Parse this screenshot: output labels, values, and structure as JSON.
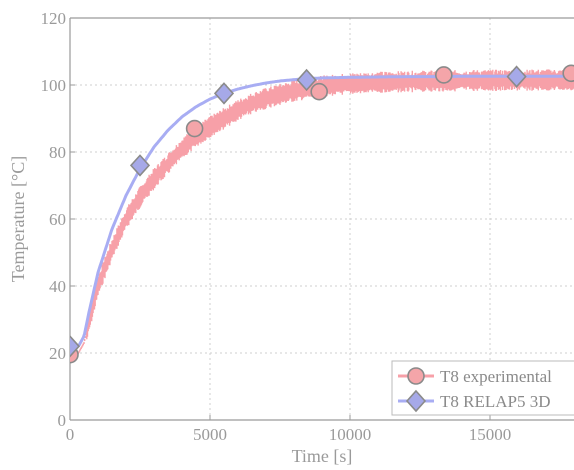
{
  "chart_data": {
    "type": "line",
    "title": "",
    "xlabel": "Time [s]",
    "ylabel": "Temperature [°C]",
    "xlim": [
      0,
      18000
    ],
    "ylim": [
      0,
      120
    ],
    "xticks": [
      0,
      5000,
      10000,
      15000
    ],
    "xtick_labels": [
      "0",
      "5000",
      "10000",
      "15000"
    ],
    "yticks": [
      0,
      20,
      40,
      60,
      80,
      100,
      120
    ],
    "ytick_labels": [
      "0",
      "20",
      "40",
      "60",
      "80",
      "100",
      "120"
    ],
    "grid": true,
    "legend_position": "bottom-right",
    "series": [
      {
        "name": "T8 experimental",
        "color": "#f7a0a8",
        "marker": "circle",
        "noisy_band": true,
        "x": [
          0,
          300,
          500,
          700,
          1000,
          1500,
          2000,
          2500,
          3000,
          3500,
          4000,
          4500,
          5000,
          5500,
          6000,
          6500,
          7000,
          7500,
          8000,
          8500,
          9000,
          9500,
          10000,
          11000,
          12000,
          13000,
          14000,
          15000,
          16000,
          17000,
          18000
        ],
        "y": [
          19.5,
          20,
          23,
          30,
          40,
          51,
          60,
          66.5,
          72,
          76.5,
          81,
          84.5,
          87.5,
          90,
          92.5,
          94.5,
          96,
          97.2,
          98.2,
          99,
          99.6,
          100,
          100.4,
          100.8,
          101,
          101.2,
          101.3,
          101.4,
          101.4,
          101.5,
          101.5
        ],
        "marker_points": [
          {
            "x": 0,
            "y": 19.5
          },
          {
            "x": 4450,
            "y": 87
          },
          {
            "x": 8900,
            "y": 98
          },
          {
            "x": 13350,
            "y": 103
          },
          {
            "x": 17900,
            "y": 103.5
          }
        ]
      },
      {
        "name": "T8 RELAP5 3D",
        "color": "#a8adf3",
        "marker": "diamond",
        "noisy_band": false,
        "x": [
          0,
          300,
          500,
          700,
          1000,
          1500,
          2000,
          2500,
          3000,
          3500,
          4000,
          4500,
          5000,
          5500,
          6000,
          6500,
          7000,
          7500,
          8000,
          8500,
          9000,
          10000,
          11000,
          12000,
          13000,
          14000,
          15000,
          16000,
          17000,
          18000
        ],
        "y": [
          21,
          22,
          25,
          33,
          44,
          57,
          67,
          75,
          81.5,
          86.5,
          90.5,
          93.5,
          95.8,
          97.5,
          98.8,
          99.8,
          100.6,
          101.2,
          101.6,
          101.9,
          102.1,
          102.3,
          102.4,
          102.5,
          102.5,
          102.6,
          102.6,
          102.6,
          102.6,
          102.6
        ],
        "marker_points": [
          {
            "x": 0,
            "y": 22
          },
          {
            "x": 2500,
            "y": 76
          },
          {
            "x": 5500,
            "y": 97.5
          },
          {
            "x": 8450,
            "y": 101.5
          },
          {
            "x": 15950,
            "y": 102.5
          }
        ]
      }
    ]
  }
}
